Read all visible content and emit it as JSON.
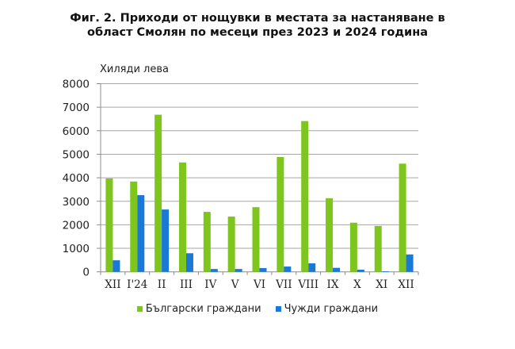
{
  "title": {
    "line1": "Фиг. 2. Приходи от нощувки в местата за настаняване в",
    "line2": "област Смолян по месеци през 2023 и 2024 година"
  },
  "unit_label": "Хиляди лева",
  "colors": {
    "bulgarian": "#7ec61d",
    "foreign": "#1a78d6",
    "grid": "#a6a6a6",
    "axis": "#8c8c8c"
  },
  "legend": [
    {
      "label": "Български граждани",
      "color": "#7ec61d"
    },
    {
      "label": "Чужди граждани",
      "color": "#1a78d6"
    }
  ],
  "chart_data": {
    "type": "bar",
    "title": "Фиг. 2. Приходи от нощувки в местата за настаняване в област Смолян по месеци през 2023 и 2024 година",
    "xlabel": "",
    "ylabel": "Хиляди лева",
    "ylim": [
      0,
      8000
    ],
    "yticks": [
      0,
      1000,
      2000,
      3000,
      4000,
      5000,
      6000,
      7000,
      8000
    ],
    "grid": true,
    "legend_position": "bottom",
    "categories": [
      "XII",
      "I'24",
      "II",
      "III",
      "IV",
      "V",
      "VI",
      "VII",
      "VIII",
      "IX",
      "X",
      "XI",
      "XII"
    ],
    "series": [
      {
        "name": "Български граждани",
        "values": [
          3970,
          3840,
          6680,
          4650,
          2550,
          2350,
          2750,
          4880,
          6410,
          3130,
          2090,
          1950,
          4600
        ]
      },
      {
        "name": "Чужди граждани",
        "values": [
          490,
          3260,
          2650,
          790,
          120,
          120,
          160,
          225,
          360,
          170,
          90,
          20,
          740
        ]
      }
    ]
  }
}
